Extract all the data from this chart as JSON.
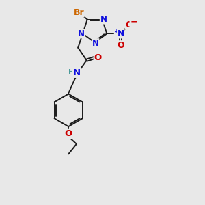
{
  "bg_color": "#e8e8e8",
  "bond_color": "#1a1a1a",
  "bond_width": 1.4,
  "atom_colors": {
    "C": "#1a1a1a",
    "H": "#4a9a9a",
    "N": "#1010dd",
    "O": "#cc0000",
    "Br": "#cc6600",
    "plus": "#1010dd",
    "minus": "#cc0000"
  },
  "font_size": 8.5
}
